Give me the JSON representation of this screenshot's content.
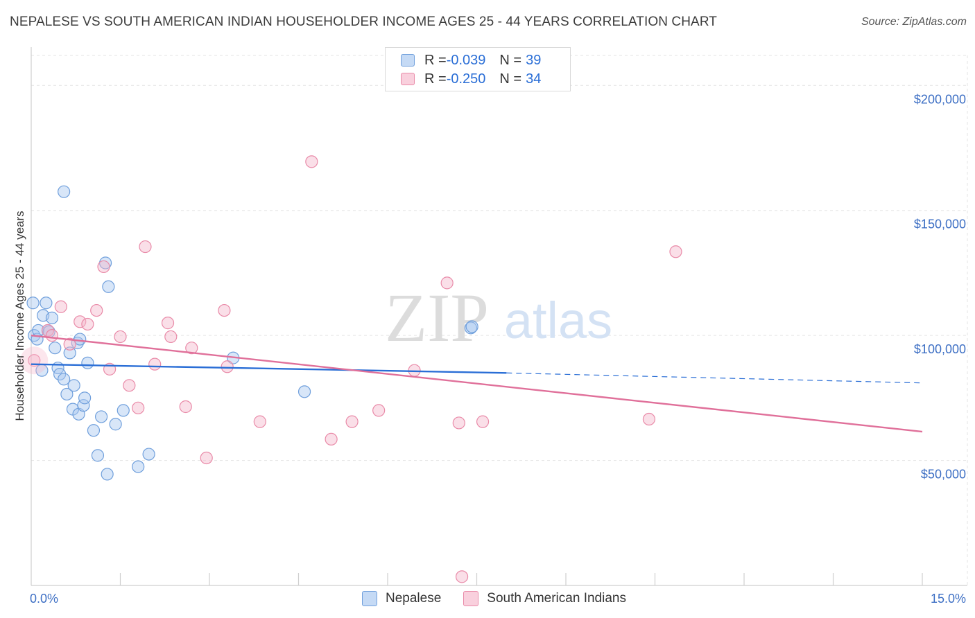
{
  "header": {
    "title": "NEPALESE VS SOUTH AMERICAN INDIAN HOUSEHOLDER INCOME AGES 25 - 44 YEARS CORRELATION CHART",
    "source": "Source: ZipAtlas.com"
  },
  "legend": {
    "rows": [
      {
        "r_label": "R = ",
        "r_value": "-0.039",
        "n_label": "N = ",
        "n_value": "39",
        "color": "#a9c8f0"
      },
      {
        "r_label": "R = ",
        "r_value": "-0.250",
        "n_label": "N = ",
        "n_value": "34",
        "color": "#f5b8cb"
      }
    ]
  },
  "bottom_legend": {
    "items": [
      {
        "label": "Nepalese",
        "color": "#a9c8f0"
      },
      {
        "label": "South American Indians",
        "color": "#f5b8cb"
      }
    ]
  },
  "watermark": {
    "zip": "ZIP",
    "atlas": "atlas"
  },
  "chart_data": {
    "type": "scatter",
    "title": "NEPALESE VS SOUTH AMERICAN INDIAN HOUSEHOLDER INCOME AGES 25 - 44 YEARS CORRELATION CHART",
    "xlabel": "",
    "ylabel": "Householder Income Ages 25 - 44 years",
    "xlim": [
      0,
      15
    ],
    "ylim": [
      0,
      212000
    ],
    "x_tick_labels": [
      "0.0%",
      "15.0%"
    ],
    "y_ticks": [
      50000,
      100000,
      150000,
      200000
    ],
    "y_tick_labels": [
      "$50,000",
      "$100,000",
      "$150,000",
      "$200,000"
    ],
    "grid": true,
    "series": [
      {
        "name": "Nepalese",
        "color": "#a9c8f0",
        "stroke": "#6f9fdc",
        "line_color": "#2a6ed6",
        "trend": {
          "x0": 0.0,
          "y0": 88500,
          "x1": 8.0,
          "y1": 85000,
          "dash_to_x": 15.0,
          "dash_y": 81000
        },
        "points": [
          [
            0.03,
            113000
          ],
          [
            0.05,
            100000
          ],
          [
            0.1,
            98500
          ],
          [
            0.12,
            102000
          ],
          [
            0.18,
            86000
          ],
          [
            0.2,
            108000
          ],
          [
            0.25,
            113000
          ],
          [
            0.28,
            102000
          ],
          [
            0.3,
            101500
          ],
          [
            0.35,
            107000
          ],
          [
            0.4,
            95000
          ],
          [
            0.45,
            87000
          ],
          [
            0.48,
            84500
          ],
          [
            0.55,
            82500
          ],
          [
            0.6,
            76500
          ],
          [
            0.65,
            93000
          ],
          [
            0.7,
            70500
          ],
          [
            0.72,
            80000
          ],
          [
            0.78,
            97000
          ],
          [
            0.8,
            68500
          ],
          [
            0.82,
            98500
          ],
          [
            0.88,
            72000
          ],
          [
            0.9,
            75000
          ],
          [
            0.95,
            89000
          ],
          [
            1.05,
            62000
          ],
          [
            1.12,
            52000
          ],
          [
            1.18,
            67500
          ],
          [
            1.25,
            129000
          ],
          [
            1.28,
            44500
          ],
          [
            1.3,
            119500
          ],
          [
            1.42,
            64500
          ],
          [
            1.55,
            70000
          ],
          [
            1.8,
            47500
          ],
          [
            1.98,
            52500
          ],
          [
            0.55,
            157500
          ],
          [
            3.4,
            91000
          ],
          [
            4.6,
            77500
          ],
          [
            7.4,
            103000
          ],
          [
            7.42,
            103500
          ]
        ]
      },
      {
        "name": "South American Indians",
        "color": "#f5b8cb",
        "stroke": "#e98aa8",
        "line_color": "#e0709a",
        "trend": {
          "x0": 0.0,
          "y0": 100000,
          "x1": 15.0,
          "y1": 61500
        },
        "points": [
          [
            0.05,
            90000
          ],
          [
            0.28,
            102000
          ],
          [
            0.35,
            100000
          ],
          [
            0.5,
            111500
          ],
          [
            0.65,
            96500
          ],
          [
            0.82,
            105500
          ],
          [
            0.95,
            104500
          ],
          [
            1.1,
            110000
          ],
          [
            1.22,
            127500
          ],
          [
            1.32,
            86500
          ],
          [
            1.5,
            99500
          ],
          [
            1.65,
            80000
          ],
          [
            1.8,
            71000
          ],
          [
            1.92,
            135500
          ],
          [
            2.08,
            88500
          ],
          [
            2.3,
            105000
          ],
          [
            2.35,
            99500
          ],
          [
            2.6,
            71500
          ],
          [
            2.7,
            95000
          ],
          [
            2.95,
            51000
          ],
          [
            3.25,
            110000
          ],
          [
            3.3,
            87500
          ],
          [
            3.85,
            65500
          ],
          [
            4.72,
            169500
          ],
          [
            5.05,
            58500
          ],
          [
            5.4,
            65500
          ],
          [
            5.85,
            70000
          ],
          [
            6.45,
            86000
          ],
          [
            7.0,
            121000
          ],
          [
            7.2,
            65000
          ],
          [
            7.25,
            3500
          ],
          [
            7.6,
            65500
          ],
          [
            10.4,
            66500
          ],
          [
            10.85,
            133500
          ]
        ]
      }
    ]
  }
}
